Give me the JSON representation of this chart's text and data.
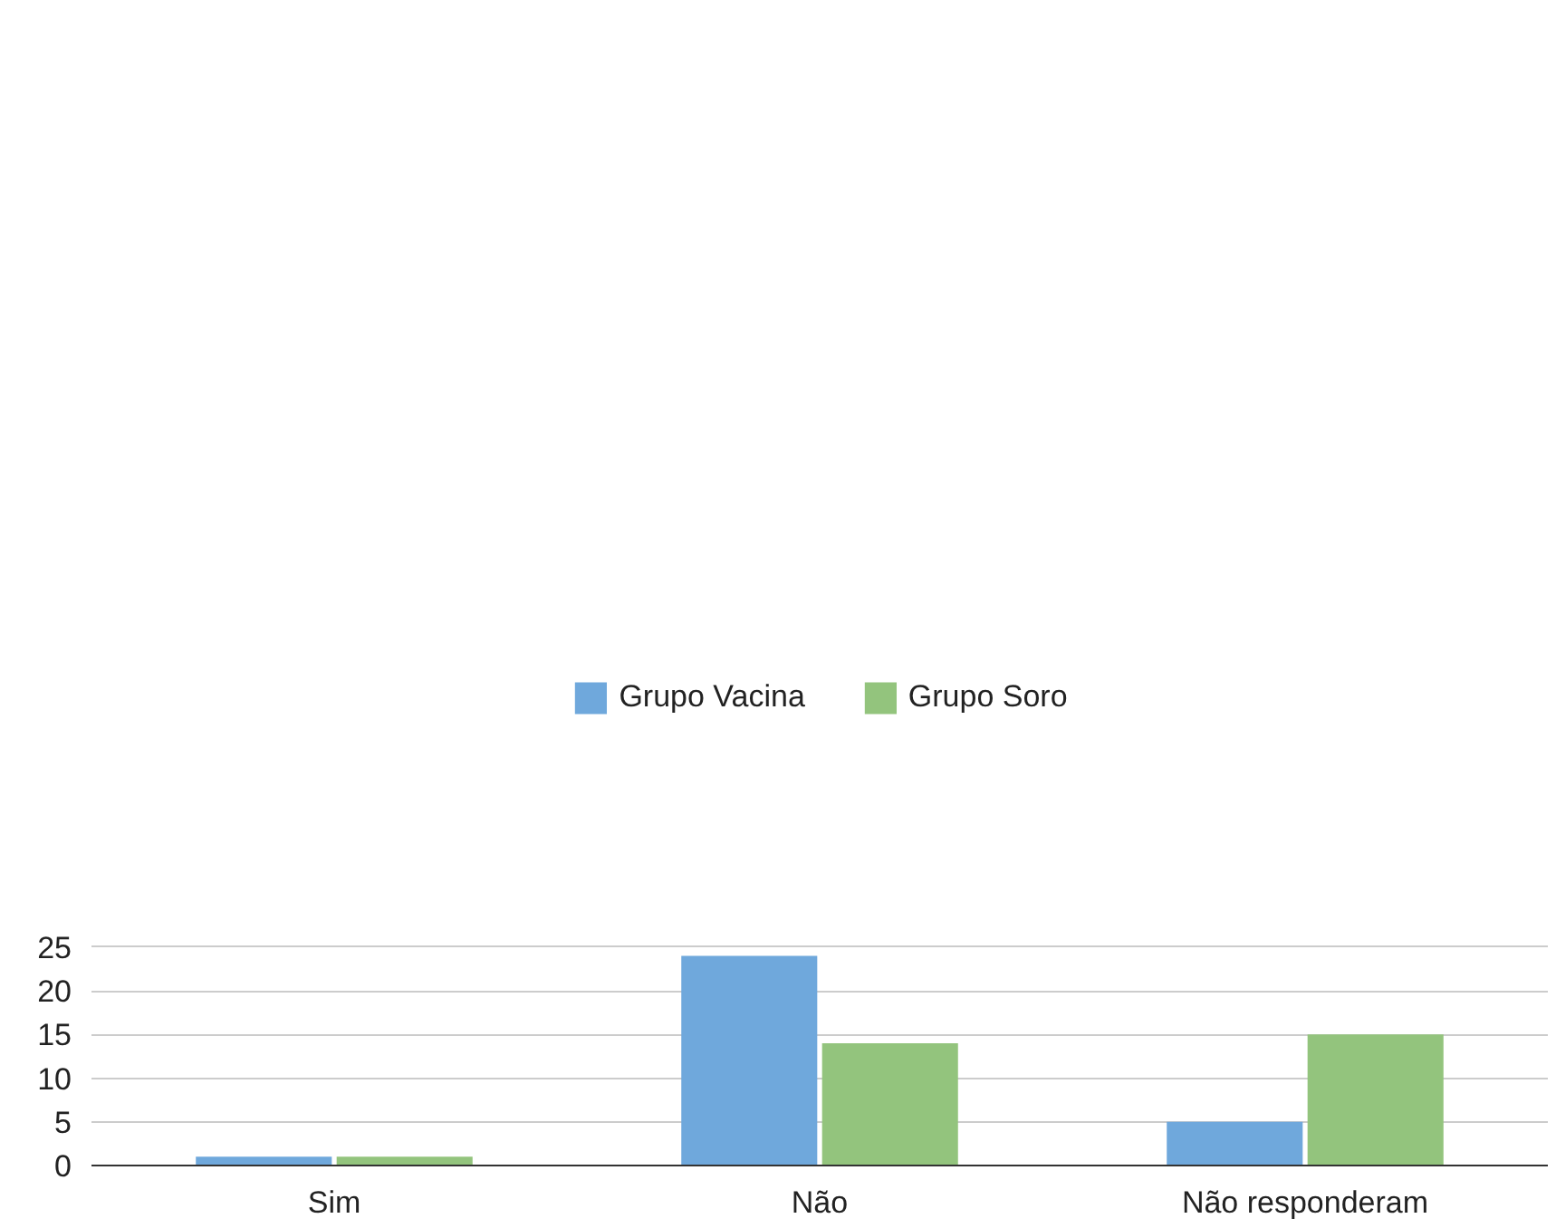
{
  "chart_data": {
    "type": "bar",
    "categories": [
      "Sim",
      "Não",
      "Não responderam"
    ],
    "series": [
      {
        "name": "Grupo Vacina",
        "color": "#6fa8dc",
        "values": [
          1,
          24,
          5
        ]
      },
      {
        "name": "Grupo Soro",
        "color": "#93c47d",
        "values": [
          1,
          14,
          15
        ]
      }
    ],
    "ylim": [
      0,
      25.5
    ],
    "yticks": [
      0,
      5,
      10,
      15,
      20,
      25
    ],
    "grid": "y",
    "legend": "top"
  }
}
